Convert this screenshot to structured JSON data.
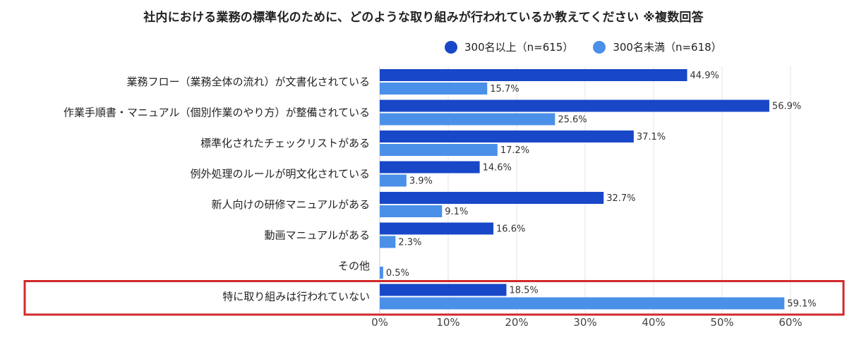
{
  "chart_data": {
    "type": "bar",
    "orientation": "horizontal",
    "title": "社内における業務の標準化のために、どのような取り組みが行われているか教えてください ※複数回答",
    "categories": [
      "業務フロー（業務全体の流れ）が文書化されている",
      "作業手順書・マニュアル（個別作業のやり方）が整備されている",
      "標準化されたチェックリストがある",
      "例外処理のルールが明文化されている",
      "新人向けの研修マニュアルがある",
      "動画マニュアルがある",
      "その他",
      "特に取り組みは行われていない"
    ],
    "series": [
      {
        "name": "300名以上（n=615）",
        "color": "#1847c8",
        "values": [
          44.9,
          56.9,
          37.1,
          14.6,
          32.7,
          16.6,
          0,
          18.5
        ],
        "labels": [
          "44.9%",
          "56.9%",
          "37.1%",
          "14.6%",
          "32.7%",
          "16.6%",
          "",
          "18.5%"
        ]
      },
      {
        "name": "300名未満（n=618）",
        "color": "#4a90e8",
        "values": [
          15.7,
          25.6,
          17.2,
          3.9,
          9.1,
          2.3,
          0.5,
          59.1
        ],
        "labels": [
          "15.7%",
          "25.6%",
          "17.2%",
          "3.9%",
          "9.1%",
          "2.3%",
          "0.5%",
          "59.1%"
        ]
      }
    ],
    "xlim": [
      0,
      60
    ],
    "ticks": [
      "0%",
      "10%",
      "20%",
      "30%",
      "40%",
      "50%",
      "60%"
    ],
    "grid": true,
    "legend_position": "top-right",
    "highlight_category_index": 7,
    "highlight_color": "#d02a2a"
  }
}
